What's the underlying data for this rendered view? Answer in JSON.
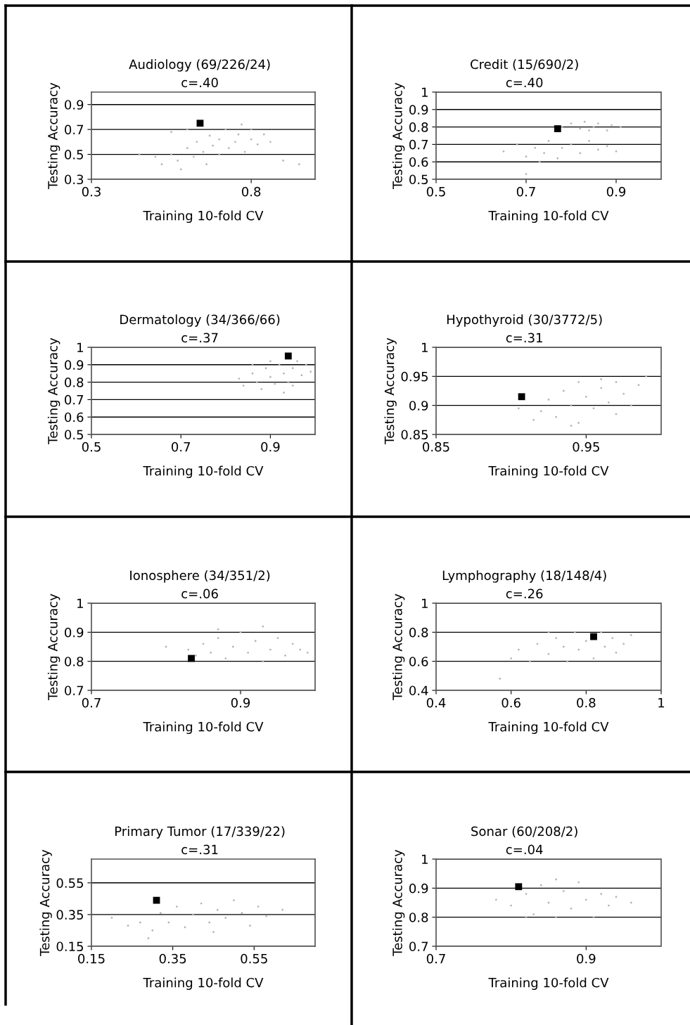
{
  "chart_data": [
    {
      "type": "scatter",
      "title": "Audiology (69/226/24)",
      "subtitle": "c=.40",
      "xlabel": "Training 10-fold CV",
      "ylabel": "Testing Accuracy",
      "xlim": [
        0.3,
        1.0
      ],
      "xticks": [
        0.3,
        0.8
      ],
      "ylim": [
        0.3,
        1.0
      ],
      "yticks": [
        0.3,
        0.5,
        0.7,
        0.9
      ],
      "grid": "y",
      "legend": false,
      "series": [
        {
          "color": "#b4b4b4",
          "marker": "circle",
          "x": [
            0.5,
            0.52,
            0.55,
            0.57,
            0.58,
            0.6,
            0.62,
            0.63,
            0.65,
            0.66,
            0.67,
            0.68,
            0.7,
            0.7,
            0.72,
            0.73,
            0.75,
            0.76,
            0.77,
            0.78,
            0.8,
            0.8,
            0.82,
            0.84,
            0.86,
            0.9,
            0.95,
            0.55,
            0.6,
            0.45
          ],
          "values": [
            0.48,
            0.42,
            0.5,
            0.45,
            0.38,
            0.55,
            0.48,
            0.6,
            0.52,
            0.42,
            0.65,
            0.57,
            0.5,
            0.62,
            0.7,
            0.55,
            0.6,
            0.66,
            0.74,
            0.52,
            0.62,
            0.7,
            0.58,
            0.66,
            0.6,
            0.45,
            0.42,
            0.68,
            0.7,
            0.5
          ]
        },
        {
          "color": "#000000",
          "marker": "square",
          "x": [
            0.64
          ],
          "values": [
            0.75
          ]
        }
      ]
    },
    {
      "type": "scatter",
      "title": "Credit (15/690/2)",
      "subtitle": "c=.40",
      "xlabel": "Training 10-fold CV",
      "ylabel": "Testing Accuracy",
      "xlim": [
        0.5,
        1.0
      ],
      "xticks": [
        0.5,
        0.7,
        0.9
      ],
      "ylim": [
        0.5,
        1.0
      ],
      "yticks": [
        0.5,
        0.6,
        0.7,
        0.8,
        0.9,
        1
      ],
      "grid": "y",
      "legend": false,
      "series": [
        {
          "color": "#b4b4b4",
          "marker": "circle",
          "x": [
            0.78,
            0.8,
            0.82,
            0.83,
            0.85,
            0.86,
            0.88,
            0.89,
            0.91,
            0.84,
            0.65,
            0.68,
            0.7,
            0.72,
            0.74,
            0.75,
            0.77,
            0.78,
            0.8,
            0.82,
            0.84,
            0.86,
            0.88,
            0.9,
            0.73,
            0.7
          ],
          "values": [
            0.8,
            0.82,
            0.79,
            0.83,
            0.8,
            0.82,
            0.78,
            0.81,
            0.8,
            0.78,
            0.66,
            0.7,
            0.63,
            0.68,
            0.65,
            0.72,
            0.62,
            0.68,
            0.7,
            0.65,
            0.72,
            0.67,
            0.69,
            0.66,
            0.6,
            0.53
          ]
        },
        {
          "color": "#000000",
          "marker": "square",
          "x": [
            0.77
          ],
          "values": [
            0.79
          ]
        }
      ]
    },
    {
      "type": "scatter",
      "title": "Dermatology (34/366/66)",
      "subtitle": "c=.37",
      "xlabel": "Training 10-fold CV",
      "ylabel": "Testing Accuracy",
      "xlim": [
        0.5,
        1.0
      ],
      "xticks": [
        0.5,
        0.7,
        0.9
      ],
      "ylim": [
        0.5,
        1.0
      ],
      "yticks": [
        0.5,
        0.6,
        0.7,
        0.8,
        0.9,
        1
      ],
      "grid": "y",
      "legend": false,
      "series": [
        {
          "color": "#b4b4b4",
          "marker": "circle",
          "x": [
            0.83,
            0.84,
            0.86,
            0.87,
            0.88,
            0.89,
            0.9,
            0.91,
            0.92,
            0.93,
            0.94,
            0.95,
            0.96,
            0.97,
            0.98,
            0.99,
            0.9,
            0.95,
            0.86,
            0.93
          ],
          "values": [
            0.82,
            0.78,
            0.85,
            0.8,
            0.76,
            0.88,
            0.83,
            0.79,
            0.9,
            0.85,
            0.8,
            0.88,
            0.92,
            0.84,
            0.9,
            0.86,
            0.92,
            0.78,
            0.9,
            0.74
          ]
        },
        {
          "color": "#000000",
          "marker": "square",
          "x": [
            0.94
          ],
          "values": [
            0.95
          ]
        }
      ]
    },
    {
      "type": "scatter",
      "title": "Hypothyroid (30/3772/5)",
      "subtitle": "c=.31",
      "xlabel": "Training 10-fold CV",
      "ylabel": "Testing Accuracy",
      "xlim": [
        0.85,
        1.0
      ],
      "xticks": [
        0.85,
        0.95
      ],
      "ylim": [
        0.85,
        1.0
      ],
      "yticks": [
        0.85,
        0.9,
        0.95,
        1
      ],
      "grid": "y",
      "legend": false,
      "series": [
        {
          "color": "#b4b4b4",
          "marker": "circle",
          "x": [
            0.905,
            0.92,
            0.925,
            0.93,
            0.935,
            0.94,
            0.945,
            0.95,
            0.955,
            0.96,
            0.965,
            0.97,
            0.975,
            0.98,
            0.985,
            0.99,
            0.96,
            0.945,
            0.94,
            0.97,
            0.915
          ],
          "values": [
            0.895,
            0.89,
            0.91,
            0.88,
            0.925,
            0.9,
            0.87,
            0.915,
            0.895,
            0.93,
            0.905,
            0.885,
            0.92,
            0.9,
            0.935,
            0.95,
            0.945,
            0.94,
            0.865,
            0.94,
            0.875
          ]
        },
        {
          "color": "#000000",
          "marker": "square",
          "x": [
            0.907
          ],
          "values": [
            0.915
          ]
        }
      ]
    },
    {
      "type": "scatter",
      "title": "Ionosphere (34/351/2)",
      "subtitle": "c=.06",
      "xlabel": "Training 10-fold CV",
      "ylabel": "Testing Accuracy",
      "xlim": [
        0.7,
        1.0
      ],
      "xticks": [
        0.7,
        0.9
      ],
      "ylim": [
        0.7,
        1.0
      ],
      "yticks": [
        0.7,
        0.8,
        0.9,
        1
      ],
      "grid": "y",
      "legend": false,
      "series": [
        {
          "color": "#b4b4b4",
          "marker": "circle",
          "x": [
            0.83,
            0.84,
            0.85,
            0.86,
            0.87,
            0.88,
            0.89,
            0.9,
            0.91,
            0.92,
            0.93,
            0.94,
            0.95,
            0.96,
            0.97,
            0.98,
            0.99,
            0.8,
            0.87,
            0.93
          ],
          "values": [
            0.84,
            0.82,
            0.86,
            0.83,
            0.88,
            0.81,
            0.85,
            0.9,
            0.83,
            0.87,
            0.92,
            0.84,
            0.88,
            0.82,
            0.86,
            0.84,
            0.83,
            0.85,
            0.91,
            0.8
          ]
        },
        {
          "color": "#000000",
          "marker": "square",
          "x": [
            0.834
          ],
          "values": [
            0.81
          ]
        }
      ]
    },
    {
      "type": "scatter",
      "title": "Lymphography (18/148/4)",
      "subtitle": "c=.26",
      "xlabel": "Training 10-fold CV",
      "ylabel": "Testing Accuracy",
      "xlim": [
        0.4,
        1.0
      ],
      "xticks": [
        0.4,
        0.6,
        0.8,
        1
      ],
      "ylim": [
        0.4,
        1.0
      ],
      "yticks": [
        0.4,
        0.6,
        0.8,
        1
      ],
      "grid": "y",
      "legend": false,
      "series": [
        {
          "color": "#b4b4b4",
          "marker": "circle",
          "x": [
            0.6,
            0.62,
            0.65,
            0.67,
            0.7,
            0.72,
            0.74,
            0.75,
            0.77,
            0.78,
            0.8,
            0.82,
            0.84,
            0.85,
            0.87,
            0.88,
            0.9,
            0.92,
            0.57,
            0.7
          ],
          "values": [
            0.62,
            0.68,
            0.6,
            0.72,
            0.65,
            0.76,
            0.7,
            0.6,
            0.8,
            0.68,
            0.74,
            0.62,
            0.8,
            0.7,
            0.76,
            0.66,
            0.72,
            0.78,
            0.48,
            0.8
          ]
        },
        {
          "color": "#000000",
          "marker": "square",
          "x": [
            0.82
          ],
          "values": [
            0.77
          ]
        }
      ]
    },
    {
      "type": "scatter",
      "title": "Primary Tumor (17/339/22)",
      "subtitle": "c=.31",
      "xlabel": "Training 10-fold CV",
      "ylabel": "Testing Accuracy",
      "xlim": [
        0.15,
        0.7
      ],
      "xticks": [
        0.15,
        0.35,
        0.55
      ],
      "ylim": [
        0.15,
        0.7
      ],
      "yticks": [
        0.15,
        0.35,
        0.55
      ],
      "grid": "y",
      "legend": false,
      "series": [
        {
          "color": "#b4b4b4",
          "marker": "circle",
          "x": [
            0.27,
            0.3,
            0.32,
            0.34,
            0.36,
            0.38,
            0.4,
            0.42,
            0.44,
            0.46,
            0.48,
            0.5,
            0.52,
            0.54,
            0.56,
            0.58,
            0.62,
            0.2,
            0.24,
            0.29,
            0.45
          ],
          "values": [
            0.3,
            0.25,
            0.36,
            0.3,
            0.4,
            0.27,
            0.35,
            0.42,
            0.3,
            0.38,
            0.33,
            0.44,
            0.36,
            0.28,
            0.4,
            0.34,
            0.38,
            0.33,
            0.28,
            0.2,
            0.24
          ]
        },
        {
          "color": "#000000",
          "marker": "square",
          "x": [
            0.31
          ],
          "values": [
            0.44
          ]
        }
      ]
    },
    {
      "type": "scatter",
      "title": "Sonar (60/208/2)",
      "subtitle": "c=.04",
      "xlabel": "Training 10-fold CV",
      "ylabel": "Testing Accuracy",
      "xlim": [
        0.7,
        1.0
      ],
      "xticks": [
        0.7,
        0.9
      ],
      "ylim": [
        0.7,
        1.0
      ],
      "yticks": [
        0.7,
        0.8,
        0.9,
        1
      ],
      "grid": "y",
      "legend": false,
      "series": [
        {
          "color": "#b4b4b4",
          "marker": "circle",
          "x": [
            0.78,
            0.8,
            0.82,
            0.83,
            0.84,
            0.85,
            0.86,
            0.87,
            0.88,
            0.89,
            0.9,
            0.91,
            0.92,
            0.93,
            0.94,
            0.96,
            0.86,
            0.82
          ],
          "values": [
            0.86,
            0.84,
            0.88,
            0.81,
            0.91,
            0.85,
            0.8,
            0.89,
            0.83,
            0.92,
            0.86,
            0.8,
            0.88,
            0.84,
            0.87,
            0.85,
            0.93,
            0.8
          ]
        },
        {
          "color": "#000000",
          "marker": "square",
          "x": [
            0.81
          ],
          "values": [
            0.905
          ]
        }
      ]
    }
  ]
}
